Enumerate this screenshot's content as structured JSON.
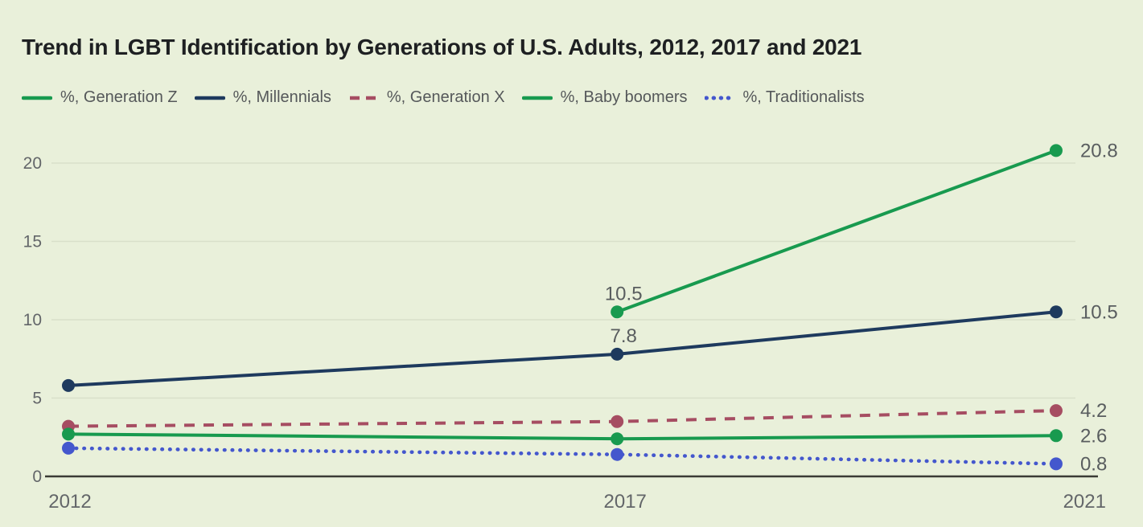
{
  "title": "Trend in LGBT Identification by Generations of U.S. Adults, 2012, 2017 and 2021",
  "colors": {
    "background": "#e9f0da",
    "grid": "#d9e0ca",
    "axis": "#3a3b35",
    "tick_text": "#636669",
    "value_label_text": "#595d5f",
    "legend_text": "#55585a",
    "title_text": "#1e2022",
    "generation_z": "#189a4f",
    "millennials": "#1e3a5e",
    "generation_x": "#a64d62",
    "baby_boomers": "#189a4f",
    "traditionalists": "#4457cd"
  },
  "legend": {
    "items": [
      {
        "label": "%, Generation Z",
        "color": "#189a4f",
        "style": "solid"
      },
      {
        "label": "%, Millennials",
        "color": "#1e3a5e",
        "style": "solid"
      },
      {
        "label": "%, Generation X",
        "color": "#a64d62",
        "style": "dashed"
      },
      {
        "label": "%, Baby boomers",
        "color": "#189a4f",
        "style": "solid"
      },
      {
        "label": "%, Traditionalists",
        "color": "#4457cd",
        "style": "dotted"
      }
    ]
  },
  "chart_data": {
    "type": "line",
    "title": "Trend in LGBT Identification by Generations of U.S. Adults, 2012, 2017 and 2021",
    "x": [
      2012,
      2017,
      2021
    ],
    "xticks": [
      "2012",
      "2017",
      "2021"
    ],
    "xlabel": "",
    "ylabel": "",
    "ylim": [
      0,
      22
    ],
    "yticks": [
      0,
      5,
      10,
      15,
      20
    ],
    "grid": true,
    "legend_position": "top",
    "series": [
      {
        "name": "%, Generation Z",
        "color": "#189a4f",
        "style": "solid",
        "values": [
          null,
          10.5,
          20.8
        ],
        "point_labels": [
          {
            "x": 2017,
            "text": "10.5"
          }
        ],
        "end_label": "20.8"
      },
      {
        "name": "%, Millennials",
        "color": "#1e3a5e",
        "style": "solid",
        "values": [
          5.8,
          7.8,
          10.5
        ],
        "point_labels": [
          {
            "x": 2017,
            "text": "7.8"
          }
        ],
        "end_label": "10.5"
      },
      {
        "name": "%, Generation X",
        "color": "#a64d62",
        "style": "dashed",
        "values": [
          3.2,
          3.5,
          4.2
        ],
        "point_labels": [],
        "end_label": "4.2"
      },
      {
        "name": "%, Baby boomers",
        "color": "#189a4f",
        "style": "solid",
        "values": [
          2.7,
          2.4,
          2.6
        ],
        "point_labels": [],
        "end_label": "2.6"
      },
      {
        "name": "%, Traditionalists",
        "color": "#4457cd",
        "style": "dotted",
        "values": [
          1.8,
          1.4,
          0.8
        ],
        "point_labels": [],
        "end_label": "0.8"
      }
    ]
  }
}
